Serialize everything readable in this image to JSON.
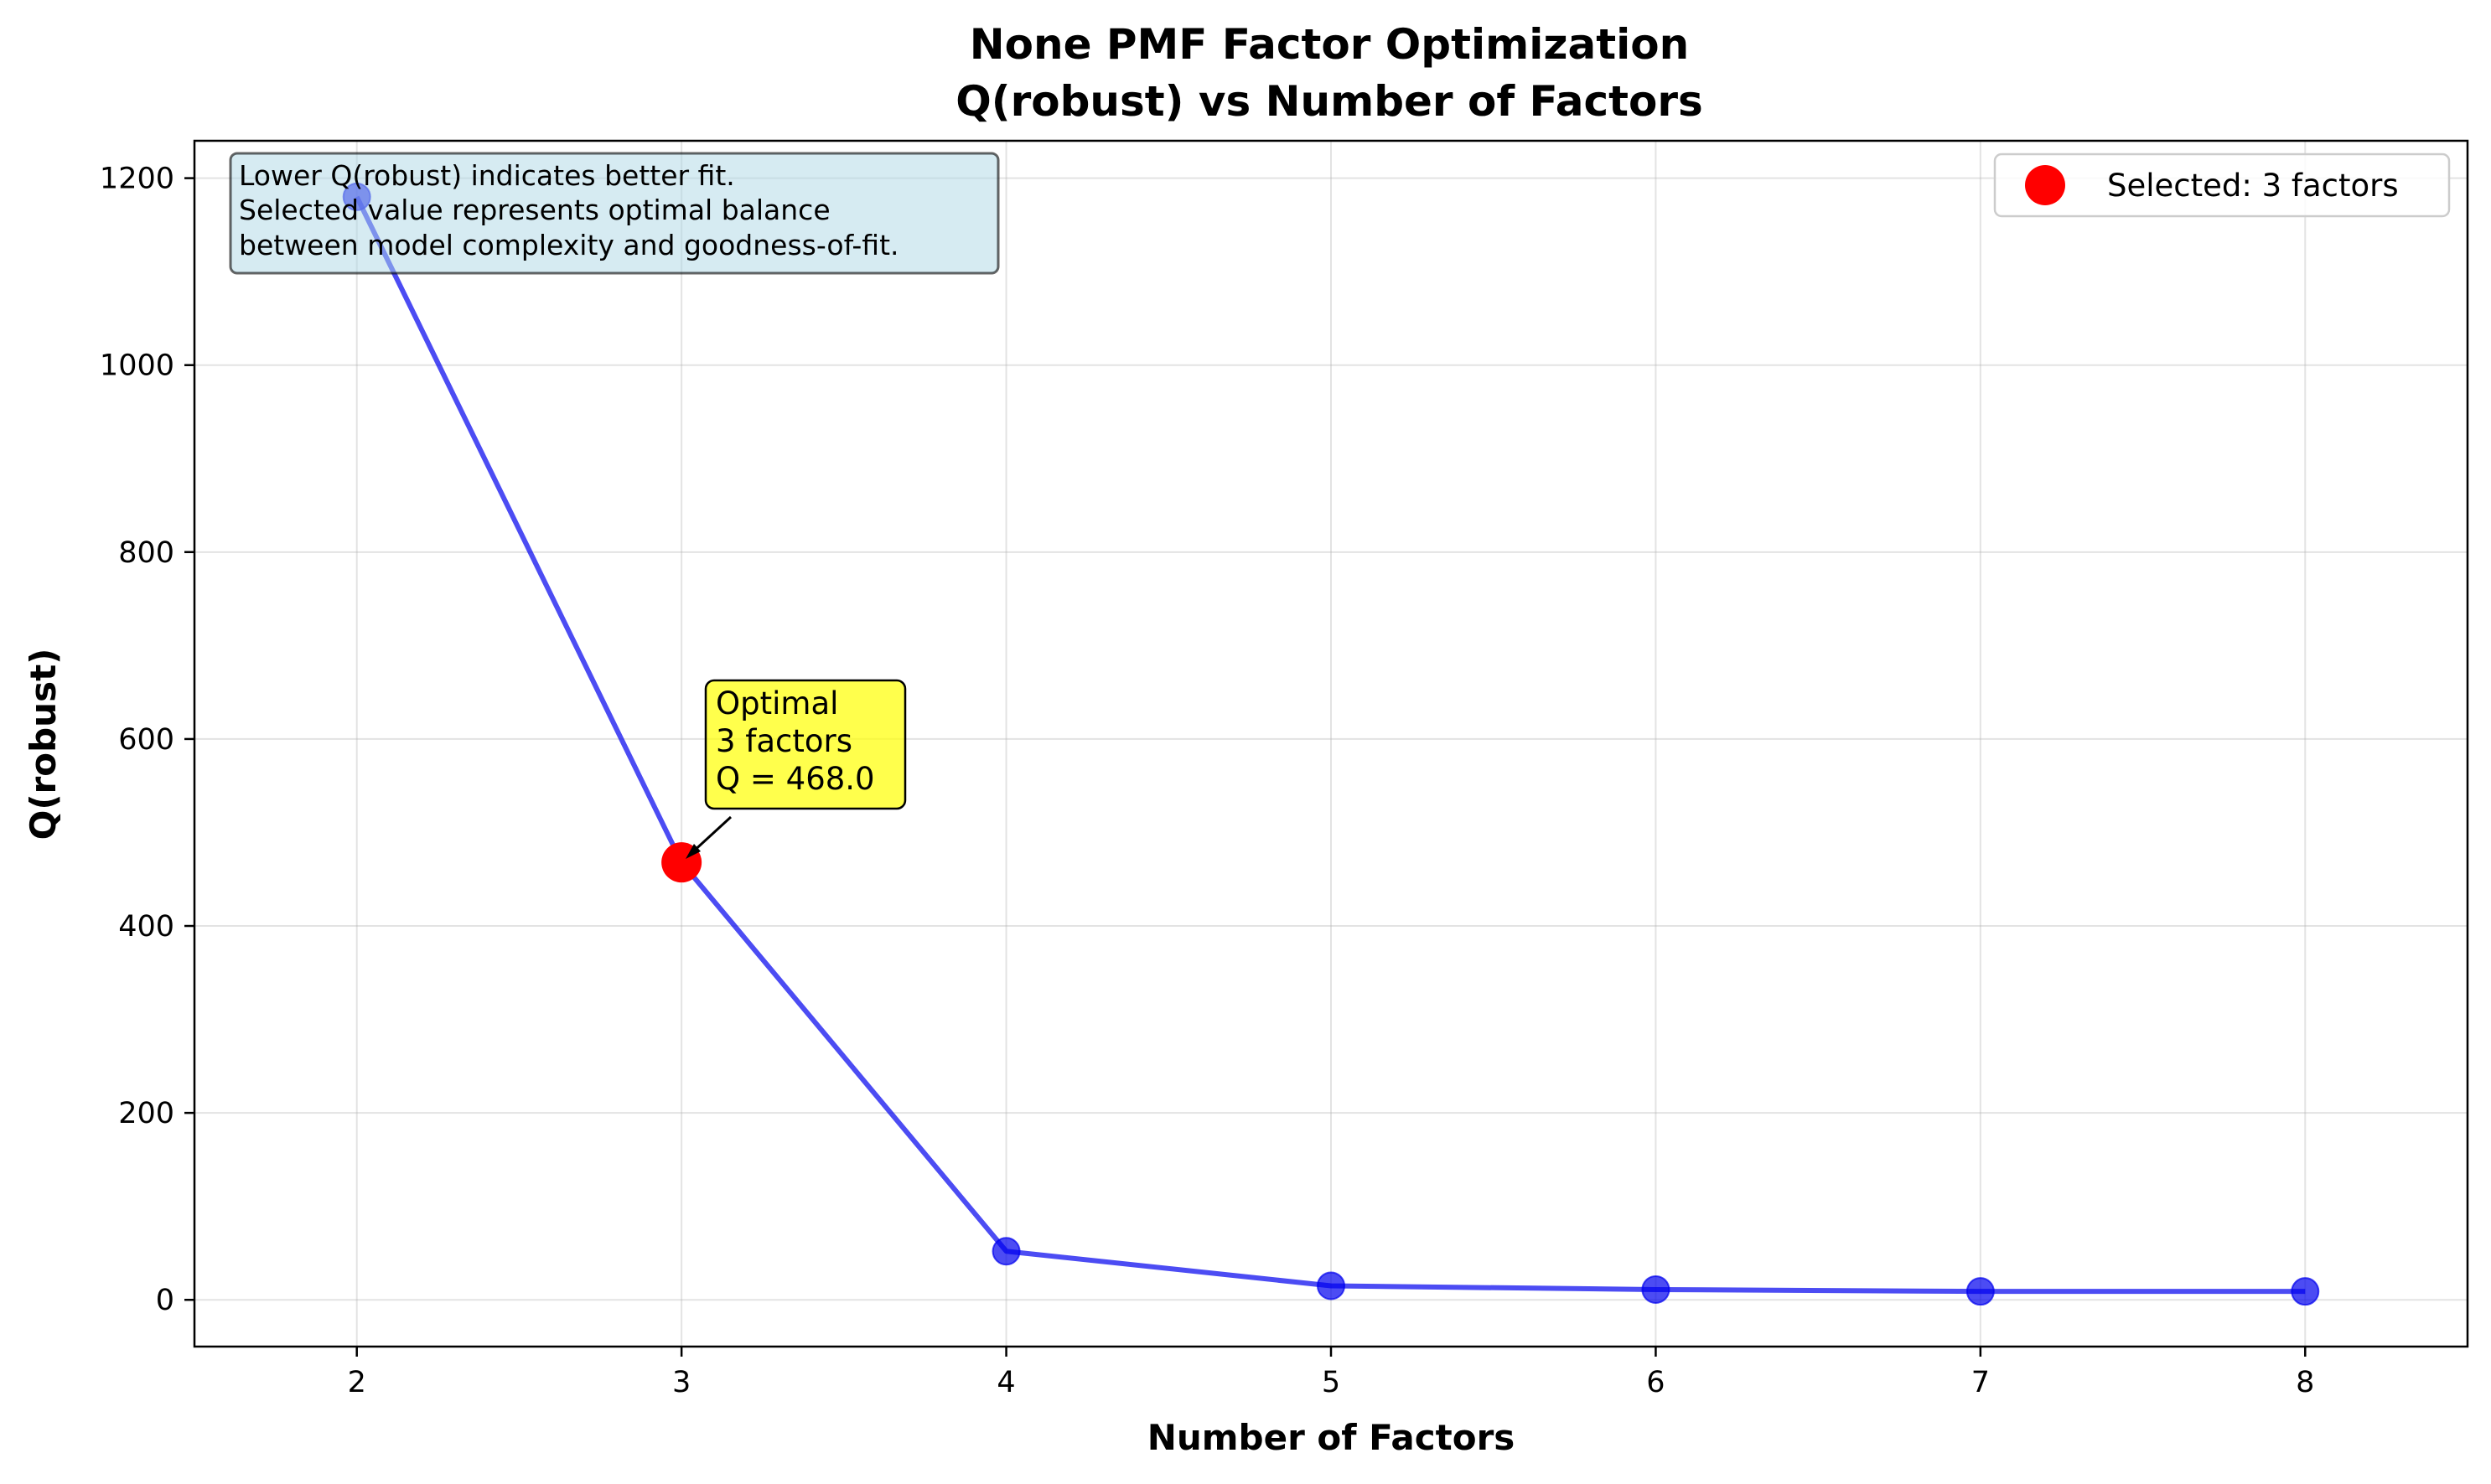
{
  "chart_data": {
    "type": "line",
    "title": "None PMF Factor Optimization",
    "subtitle": "Q(robust) vs Number of Factors",
    "xlabel": "Number of Factors",
    "ylabel": "Q(robust)",
    "xlim": [
      1.5,
      8.5
    ],
    "ylim": [
      -50,
      1240
    ],
    "xticks": [
      2,
      3,
      4,
      5,
      6,
      7,
      8
    ],
    "yticks": [
      0,
      200,
      400,
      600,
      800,
      1000,
      1200
    ],
    "grid": true,
    "series": [
      {
        "name": "Q(robust)",
        "color": "#0000ee",
        "x": [
          2,
          3,
          4,
          5,
          6,
          7,
          8
        ],
        "y": [
          1180,
          468,
          52,
          15,
          11,
          9,
          9
        ]
      }
    ],
    "selected": {
      "x": 3,
      "y": 468.0,
      "color": "#ff0000"
    },
    "legend": {
      "position": "top-right",
      "label": "Selected: 3 factors"
    },
    "info_box": {
      "lines": [
        "Lower Q(robust) indicates better fit.",
        "Selected value represents optimal balance",
        "between model complexity and goodness-of-fit."
      ],
      "color": "#add8e6"
    },
    "annotation": {
      "lines": [
        "Optimal",
        "3 factors",
        "Q = 468.0"
      ],
      "color": "#ffff00"
    }
  }
}
